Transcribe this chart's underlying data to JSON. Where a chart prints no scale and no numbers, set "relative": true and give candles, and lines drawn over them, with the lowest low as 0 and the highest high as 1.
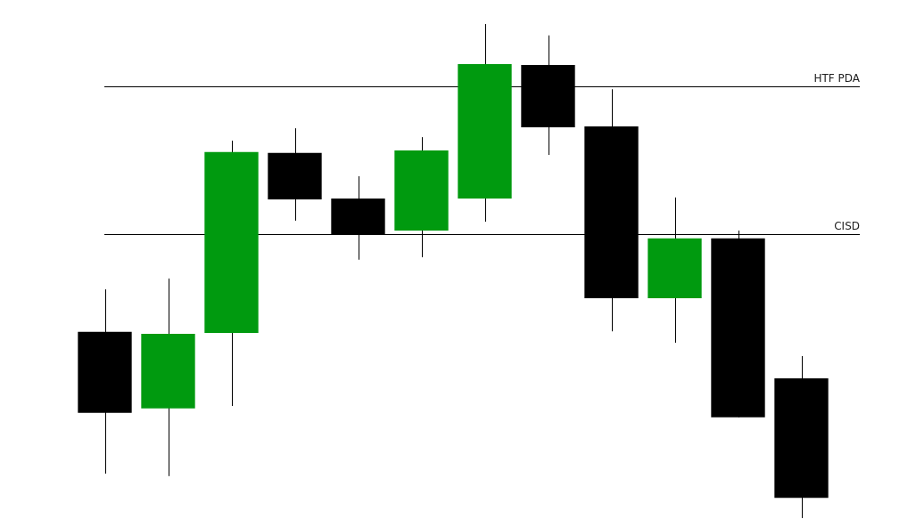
{
  "chart_data": {
    "type": "candlestick",
    "relative": true,
    "categories": [
      null,
      null,
      null,
      null,
      null,
      null,
      null,
      null,
      null,
      null,
      null,
      null
    ],
    "ohlc": [
      [
        0.377,
        0.463,
        0.09,
        0.213
      ],
      [
        0.222,
        0.485,
        0.085,
        0.373
      ],
      [
        0.375,
        0.764,
        0.227,
        0.741
      ],
      [
        0.739,
        0.789,
        0.602,
        0.645
      ],
      [
        0.647,
        0.692,
        0.523,
        0.573
      ],
      [
        0.582,
        0.771,
        0.528,
        0.744
      ],
      [
        0.647,
        1,
        0.6,
        0.919
      ],
      [
        0.917,
        0.977,
        0.735,
        0.791
      ],
      [
        0.793,
        0.868,
        0.378,
        0.445
      ],
      [
        0.445,
        0.649,
        0.355,
        0.566
      ],
      [
        0.566,
        0.582,
        0.204,
        0.204
      ],
      [
        0.283,
        0.328,
        0,
        0.041
      ]
    ],
    "colors": [
      "#000000",
      "#009a0f",
      "#009a0f",
      "#000000",
      "#000000",
      "#009a0f",
      "#009a0f",
      "#000000",
      "#000000",
      "#009a0f",
      "#000000",
      "#000000"
    ],
    "ref_lines": [
      {
        "axis": "y",
        "value": 0.874,
        "label": "HTF PDA",
        "color": "#000000"
      },
      {
        "axis": "y",
        "value": 0.575,
        "label": "CISD",
        "color": "#000000"
      }
    ],
    "legend": false
  }
}
